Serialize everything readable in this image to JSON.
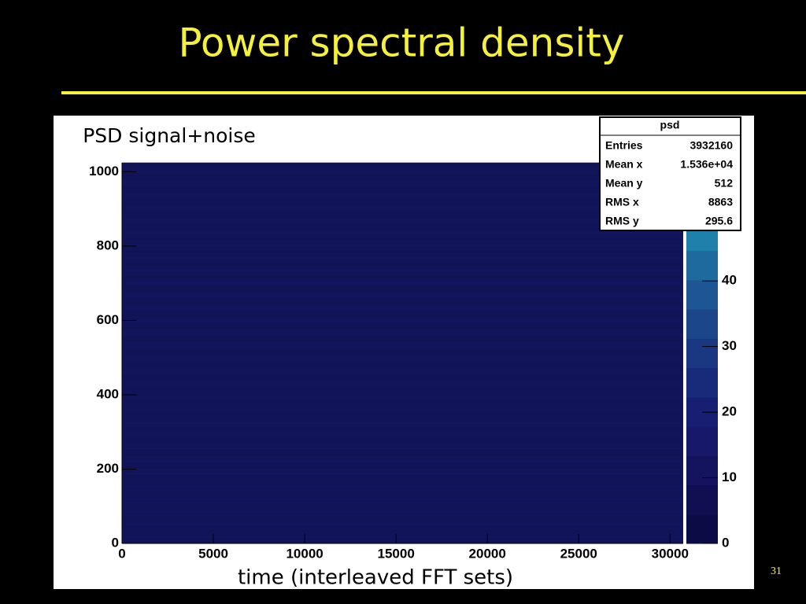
{
  "slide_title": "Power spectral density",
  "slide_number": "31",
  "chart_data": {
    "type": "heatmap",
    "title": "PSD signal+noise",
    "xlabel": "time (interleaved FFT sets)",
    "xlim": [
      0,
      30720
    ],
    "xticks": [
      0,
      5000,
      10000,
      15000,
      20000,
      25000,
      30000
    ],
    "ylim": [
      0,
      1024
    ],
    "yticks": [
      0,
      200,
      400,
      600,
      800,
      1000
    ],
    "zlim": [
      0,
      58
    ],
    "zticks": [
      0,
      10,
      20,
      30,
      40
    ],
    "fill_color": "#12145a",
    "palette": [
      "#0b0b45",
      "#0f0f52",
      "#14145e",
      "#18186a",
      "#161f72",
      "#172b7a",
      "#1a3882",
      "#1c468a",
      "#1d5692",
      "#1e6a9e",
      "#1f80ab",
      "#1f97bd",
      "#20aacd"
    ],
    "stats": {
      "title": "psd",
      "rows": [
        [
          "Entries",
          "3932160"
        ],
        [
          "Mean x",
          "1.536e+04"
        ],
        [
          "Mean y",
          "512"
        ],
        [
          "RMS x",
          "8863"
        ],
        [
          "RMS y",
          "295.6"
        ]
      ]
    }
  }
}
